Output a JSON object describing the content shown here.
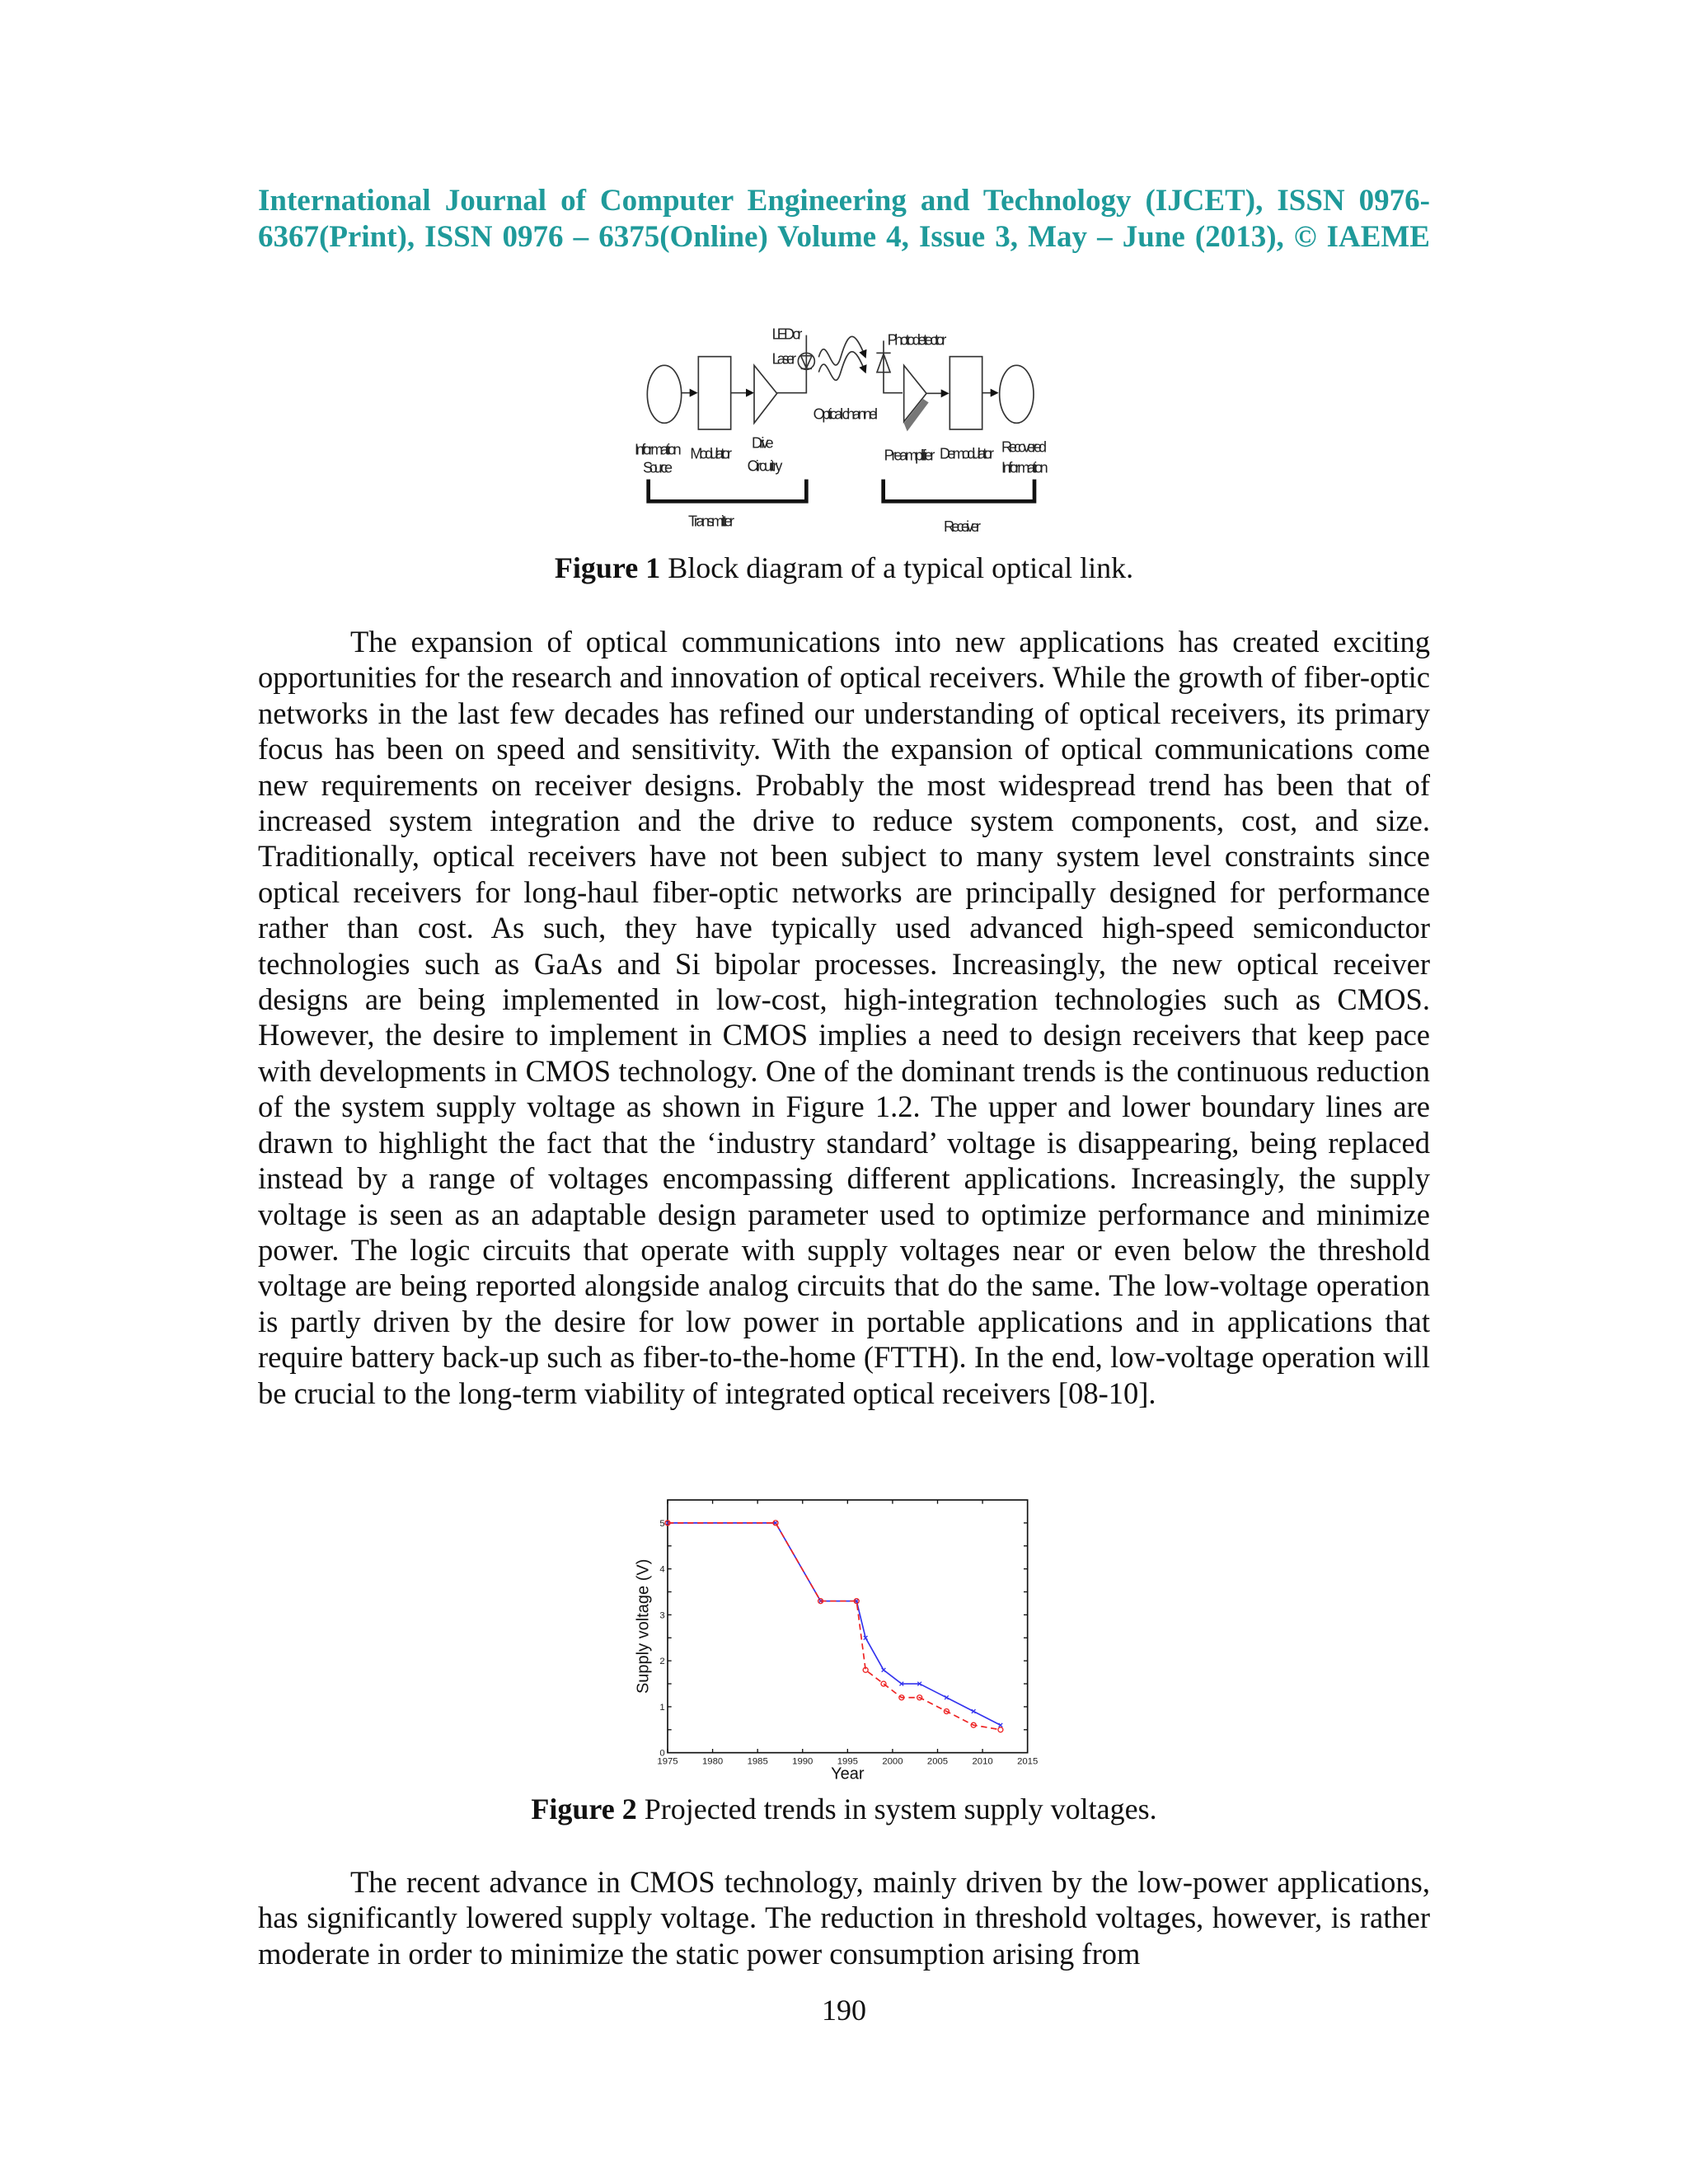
{
  "header": {
    "line1": "International Journal of Computer Engineering and Technology (IJCET), ISSN 0976-",
    "line2": "6367(Print), ISSN 0976 – 6375(Online) Volume 4, Issue 3, May – June (2013), © IAEME",
    "color": "#1f9a9a"
  },
  "figure1": {
    "labels": {
      "led": "LED or",
      "laser": "Laser",
      "photodetector": "Photodetector",
      "optical_channel": "Optical channel",
      "info_source_1": "Information",
      "info_source_2": "Source",
      "modulator": "Modulator",
      "drive_1": "Drive",
      "drive_2": "Circuitry",
      "preamplifier": "Preamplifier",
      "demodulator": "Demodulator",
      "recovered_1": "Recovered",
      "recovered_2": "Information",
      "transmitter": "Transmitter",
      "receiver": "Receiver"
    },
    "caption_bold": "Figure 1",
    "caption_text": " Block diagram of a typical optical link."
  },
  "paragraph1": "The expansion of optical communications into new applications has created exciting opportunities for the research and innovation of optical receivers. While the growth of fiber-optic networks in the last few decades has refined our understanding of optical receivers, its primary focus has been on speed and sensitivity. With the expansion of optical communications come new requirements on receiver designs. Probably the most widespread trend has been that of increased system integration and the drive to reduce system components, cost, and size. Traditionally, optical receivers have not been subject to many system level constraints since optical receivers for long-haul fiber-optic networks are principally designed for performance rather than cost. As such, they have typically used advanced high-speed semiconductor technologies such as GaAs and Si bipolar processes. Increasingly, the new optical receiver designs are being implemented in low-cost, high-integration technologies such as CMOS. However, the desire to implement in CMOS implies a need to design receivers that keep pace with developments in CMOS technology. One of the dominant trends is the continuous reduction of the system supply voltage as shown in Figure 1.2. The upper and lower boundary lines are drawn to highlight the fact that the ‘industry standard’ voltage is disappearing, being replaced instead by a range of voltages encompassing different applications. Increasingly, the supply voltage is seen as an adaptable design parameter used to optimize performance and minimize power. The logic circuits that operate with supply voltages near or even below the threshold voltage are being reported alongside analog circuits that do the same. The low-voltage operation is partly driven by the desire for low power in portable applications and in applications that require battery back-up such as fiber-to-the-home (FTTH). In the end, low-voltage operation will be crucial to the long-term viability of integrated optical receivers [08-10].",
  "chart_data": {
    "type": "line",
    "xlabel": "Year",
    "ylabel": "Supply voltage (V)",
    "xlim": [
      1975,
      2015
    ],
    "ylim": [
      0,
      5.5
    ],
    "xticks": [
      "1975",
      "1980",
      "1985",
      "1990",
      "1995",
      "2000",
      "2005",
      "2010",
      "2015"
    ],
    "yticks": [
      "0",
      "1",
      "2",
      "3",
      "4",
      "5"
    ],
    "grid": false,
    "series": [
      {
        "color": "#3333ee",
        "style": "solid",
        "marker": "x",
        "x": [
          1975,
          1987,
          1992,
          1996,
          1997,
          1999,
          2001,
          2003,
          2006,
          2009,
          2012
        ],
        "y": [
          5,
          5,
          3.3,
          3.3,
          2.5,
          1.8,
          1.5,
          1.5,
          1.2,
          0.9,
          0.6
        ]
      },
      {
        "color": "#ee2222",
        "style": "dashed",
        "marker": "o",
        "x": [
          1975,
          1987,
          1992,
          1996,
          1997,
          1999,
          2001,
          2003,
          2006,
          2009,
          2012
        ],
        "y": [
          5,
          5,
          3.3,
          3.3,
          1.8,
          1.5,
          1.2,
          1.2,
          0.9,
          0.6,
          0.5
        ]
      }
    ]
  },
  "figure2": {
    "caption_bold": "Figure 2",
    "caption_text": " Projected trends in system supply voltages."
  },
  "paragraph2": "The recent advance in CMOS technology, mainly driven by the low-power applications, has significantly lowered supply voltage. The reduction in threshold voltages, however, is rather moderate in order to minimize the static power consumption arising from",
  "page_number": "190"
}
